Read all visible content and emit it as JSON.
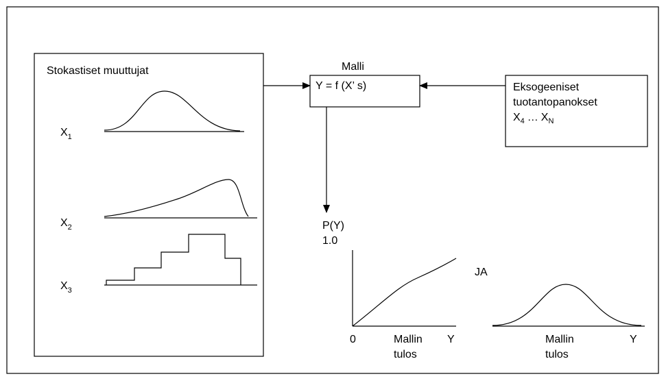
{
  "inputs": {
    "title": "Stokastiset muuttujat",
    "variables": [
      {
        "base": "X",
        "sub": "1"
      },
      {
        "base": "X",
        "sub": "2"
      },
      {
        "base": "X",
        "sub": "3"
      }
    ]
  },
  "model": {
    "title": "Malli",
    "formula": "Y = f (X’ s)"
  },
  "exogenous": {
    "lines": [
      "Eksogeeniset",
      "tuotantopanokset"
    ],
    "range": {
      "start_base": "X",
      "start_sub": "4",
      "ellipsis": "…",
      "end_base": "X",
      "end_sub": "N"
    }
  },
  "output": {
    "cdf": {
      "y_label": "P(Y)",
      "y_max": "1.0",
      "origin": "0",
      "x_label": [
        "Mallin",
        "tulos"
      ],
      "x_axis": "Y"
    },
    "joiner": "JA",
    "pdf": {
      "x_label": [
        "Mallin",
        "tulos"
      ],
      "x_axis": "Y"
    }
  }
}
